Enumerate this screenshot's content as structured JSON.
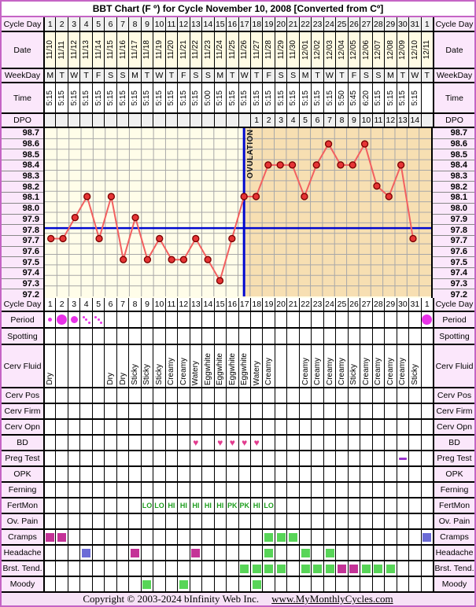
{
  "title": "BBT Chart (F º) for Cycle November 10, 2008  [Converted from Cº]",
  "footer": {
    "copyright": "Copyright © 2003-2024 bInfinity Web Inc.",
    "link": "www.MyMonthlyCycles.com"
  },
  "colors": {
    "frame_border": "#C564C5",
    "label_bg": "#FBE7FB",
    "header_gray": "#F0F0F0",
    "date_cream": "#FFFBE4",
    "chart_pre_ovulation_bg": "#FFFDE9",
    "chart_post_ovulation_bg": "#F7DFB2",
    "gridline": "#A8A8A8",
    "temp_line": "#F26060",
    "temp_point_fill": "#E63535",
    "temp_point_edge": "#7A0000",
    "blue_line": "#0008D0",
    "period_dot": "#E832E8",
    "heart": "#E23B8E",
    "square_green": "#58D558",
    "square_magenta": "#C43397",
    "square_blue": "#6B6BD6",
    "dash_purple": "#9933CC",
    "fertmon_green": "#1E9E1E"
  },
  "header_rows": [
    {
      "label": "Cycle Day",
      "kind": "text",
      "values": [
        "1",
        "2",
        "3",
        "4",
        "5",
        "6",
        "7",
        "8",
        "9",
        "10",
        "11",
        "12",
        "13",
        "14",
        "15",
        "16",
        "17",
        "18",
        "19",
        "20",
        "21",
        "22",
        "23",
        "24",
        "25",
        "26",
        "27",
        "28",
        "29",
        "30",
        "31",
        "1"
      ]
    },
    {
      "label": "Date",
      "kind": "vtext",
      "values": [
        "11/10",
        "11/11",
        "11/12",
        "11/13",
        "11/14",
        "11/15",
        "11/16",
        "11/17",
        "11/18",
        "11/19",
        "11/20",
        "11/21",
        "11/22",
        "11/23",
        "11/24",
        "11/25",
        "11/26",
        "11/27",
        "11/28",
        "11/29",
        "11/30",
        "12/01",
        "12/02",
        "12/03",
        "12/04",
        "12/05",
        "12/06",
        "12/07",
        "12/08",
        "12/09",
        "12/10",
        "12/11"
      ]
    },
    {
      "label": "WeekDay",
      "kind": "text",
      "values": [
        "M",
        "T",
        "W",
        "T",
        "F",
        "S",
        "S",
        "M",
        "T",
        "W",
        "T",
        "F",
        "S",
        "S",
        "M",
        "T",
        "W",
        "T",
        "F",
        "S",
        "S",
        "M",
        "T",
        "W",
        "T",
        "F",
        "S",
        "S",
        "M",
        "T",
        "W",
        "T"
      ]
    },
    {
      "label": "Time",
      "kind": "vtext",
      "values": [
        "5:15",
        "5:15",
        "5:15",
        "5:15",
        "5:15",
        "5:15",
        "5:15",
        "5:15",
        "5:15",
        "5:15",
        "5:15",
        "5:15",
        "5:15",
        "5:00",
        "5:15",
        "5:15",
        "5:15",
        "5:15",
        "5:15",
        "5:15",
        "5:15",
        "5:15",
        "5:15",
        "5:15",
        "5:50",
        "5:45",
        "6:20",
        "5:15",
        "5:15",
        "5:15",
        "5:15",
        ""
      ]
    },
    {
      "label": "DPO",
      "kind": "text",
      "values": [
        "",
        "",
        "",
        "",
        "",
        "",
        "",
        "",
        "",
        "",
        "",
        "",
        "",
        "",
        "",
        "",
        "",
        "1",
        "2",
        "3",
        "4",
        "5",
        "6",
        "7",
        "8",
        "9",
        "10",
        "11",
        "12",
        "13",
        "14",
        ""
      ]
    }
  ],
  "chart_data": {
    "type": "line",
    "title": "Basal body temperature (°F) by cycle day",
    "x": [
      1,
      2,
      3,
      4,
      5,
      6,
      7,
      8,
      9,
      10,
      11,
      12,
      13,
      14,
      15,
      16,
      17,
      18,
      19,
      20,
      21,
      22,
      23,
      24,
      25,
      26,
      27,
      28,
      29,
      30,
      31
    ],
    "temps": [
      97.7,
      97.7,
      97.9,
      98.1,
      97.7,
      98.1,
      97.5,
      97.9,
      97.5,
      97.7,
      97.5,
      97.5,
      97.7,
      97.5,
      97.3,
      97.7,
      98.1,
      98.1,
      98.4,
      98.4,
      98.4,
      98.1,
      98.4,
      98.6,
      98.4,
      98.4,
      98.6,
      98.2,
      98.1,
      98.4,
      97.7
    ],
    "ylabels": [
      "98.7",
      "98.6",
      "98.5",
      "98.4",
      "98.3",
      "98.2",
      "98.1",
      "98.0",
      "97.9",
      "97.8",
      "97.7",
      "97.6",
      "97.5",
      "97.4",
      "97.3",
      "97.2"
    ],
    "ylim": [
      97.15,
      98.75
    ],
    "coverline": 97.8,
    "ovulation_day": 17,
    "ovulation_label": "OVULATION",
    "grid": true
  },
  "body_rows": [
    {
      "label": "Cycle Day",
      "kind": "text",
      "values": [
        "1",
        "2",
        "3",
        "4",
        "5",
        "6",
        "7",
        "8",
        "9",
        "10",
        "11",
        "12",
        "13",
        "14",
        "15",
        "16",
        "17",
        "18",
        "19",
        "20",
        "21",
        "22",
        "23",
        "24",
        "25",
        "26",
        "27",
        "28",
        "29",
        "30",
        "31",
        "1"
      ]
    },
    {
      "label": "Period",
      "kind": "period",
      "values": [
        "S",
        "L",
        "M",
        "D",
        "D",
        "",
        "",
        "",
        "",
        "",
        "",
        "",
        "",
        "",
        "",
        "",
        "",
        "",
        "",
        "",
        "",
        "",
        "",
        "",
        "",
        "",
        "",
        "",
        "",
        "",
        "",
        "L"
      ]
    },
    {
      "label": "Spotting",
      "kind": "text",
      "values": []
    },
    {
      "label": "Cerv Fluid",
      "kind": "vtext",
      "values": [
        "Dry",
        "",
        "",
        "",
        "",
        "Dry",
        "Dry",
        "Sticky",
        "Sticky",
        "Sticky",
        "Creamy",
        "Creamy",
        "Watery",
        "Eggwhite",
        "Eggwhite",
        "Eggwhite",
        "Eggwhite",
        "Watery",
        "Creamy",
        "",
        "",
        "Creamy",
        "Creamy",
        "Creamy",
        "Creamy",
        "Sticky",
        "Creamy",
        "Creamy",
        "Creamy",
        "Creamy",
        "Sticky",
        ""
      ]
    },
    {
      "label": "Cerv Pos",
      "kind": "text",
      "values": []
    },
    {
      "label": "Cerv Firm",
      "kind": "text",
      "values": []
    },
    {
      "label": "Cerv Opn",
      "kind": "text",
      "values": []
    },
    {
      "label": "BD",
      "kind": "heart",
      "values": [
        "",
        "",
        "",
        "",
        "",
        "",
        "",
        "",
        "",
        "",
        "",
        "",
        "H",
        "",
        "H",
        "H",
        "H",
        "H",
        "",
        "",
        "",
        "",
        "",
        "",
        "",
        "",
        "",
        "",
        "",
        "",
        "",
        ""
      ]
    },
    {
      "label": "Preg Test",
      "kind": "dash",
      "values": [
        "",
        "",
        "",
        "",
        "",
        "",
        "",
        "",
        "",
        "",
        "",
        "",
        "",
        "",
        "",
        "",
        "",
        "",
        "",
        "",
        "",
        "",
        "",
        "",
        "",
        "",
        "",
        "",
        "",
        "N",
        "",
        ""
      ]
    },
    {
      "label": "OPK",
      "kind": "text",
      "values": []
    },
    {
      "label": "Ferning",
      "kind": "text",
      "values": []
    },
    {
      "label": "FertMon",
      "kind": "fertmon",
      "values": [
        "",
        "",
        "",
        "",
        "",
        "",
        "",
        "",
        "LO",
        "LO",
        "HI",
        "HI",
        "HI",
        "HI",
        "HI",
        "PK",
        "PK",
        "HI",
        "LO",
        "",
        "",
        "",
        "",
        "",
        "",
        "",
        "",
        "",
        "",
        "",
        "",
        ""
      ]
    },
    {
      "label": "Ov. Pain",
      "kind": "text",
      "values": []
    },
    {
      "label": "Cramps",
      "kind": "square",
      "values": [
        "M",
        "M",
        "",
        "",
        "",
        "",
        "",
        "",
        "",
        "",
        "",
        "",
        "",
        "",
        "",
        "",
        "",
        "",
        "G",
        "G",
        "G",
        "",
        "",
        "",
        "",
        "",
        "",
        "",
        "",
        "",
        "",
        "B"
      ]
    },
    {
      "label": "Headache",
      "kind": "square",
      "values": [
        "",
        "",
        "",
        "B",
        "",
        "",
        "",
        "M",
        "",
        "",
        "",
        "",
        "M",
        "",
        "",
        "",
        "",
        "",
        "G",
        "",
        "",
        "G",
        "",
        "G",
        "",
        "",
        "",
        "",
        "",
        "",
        "",
        ""
      ]
    },
    {
      "label": "Brst. Tend.",
      "kind": "square",
      "values": [
        "",
        "",
        "",
        "",
        "",
        "",
        "",
        "",
        "",
        "",
        "",
        "",
        "",
        "",
        "",
        "",
        "G",
        "G",
        "G",
        "G",
        "",
        "G",
        "G",
        "G",
        "M",
        "M",
        "G",
        "G",
        "G",
        "",
        "",
        ""
      ]
    },
    {
      "label": "Moody",
      "kind": "square",
      "values": [
        "",
        "",
        "",
        "",
        "",
        "",
        "",
        "",
        "G",
        "",
        "",
        "G",
        "",
        "",
        "",
        "",
        "",
        "G",
        "",
        "",
        "",
        "",
        "",
        "",
        "",
        "",
        "",
        "",
        "",
        "",
        "",
        ""
      ]
    }
  ]
}
